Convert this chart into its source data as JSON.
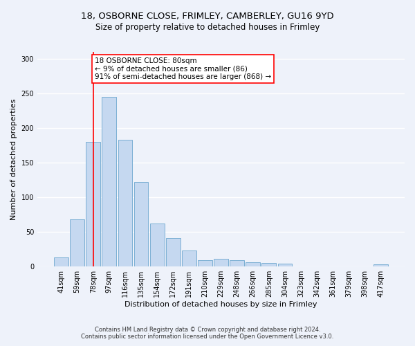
{
  "title_line1": "18, OSBORNE CLOSE, FRIMLEY, CAMBERLEY, GU16 9YD",
  "title_line2": "Size of property relative to detached houses in Frimley",
  "xlabel": "Distribution of detached houses by size in Frimley",
  "ylabel": "Number of detached properties",
  "bar_labels": [
    "41sqm",
    "59sqm",
    "78sqm",
    "97sqm",
    "116sqm",
    "135sqm",
    "154sqm",
    "172sqm",
    "191sqm",
    "210sqm",
    "229sqm",
    "248sqm",
    "266sqm",
    "285sqm",
    "304sqm",
    "323sqm",
    "342sqm",
    "361sqm",
    "379sqm",
    "398sqm",
    "417sqm"
  ],
  "bar_values": [
    13,
    68,
    180,
    245,
    183,
    122,
    62,
    41,
    23,
    9,
    11,
    9,
    6,
    5,
    4,
    0,
    0,
    0,
    0,
    0,
    3
  ],
  "bar_color": "#c5d8f0",
  "bar_edge_color": "#7bafd4",
  "vline_x_index": 2,
  "vline_color": "red",
  "annotation_text": "18 OSBORNE CLOSE: 80sqm\n← 9% of detached houses are smaller (86)\n91% of semi-detached houses are larger (868) →",
  "annotation_box_color": "white",
  "annotation_box_edge_color": "red",
  "ylim": [
    0,
    310
  ],
  "yticks": [
    0,
    50,
    100,
    150,
    200,
    250,
    300
  ],
  "footer_line1": "Contains HM Land Registry data © Crown copyright and database right 2024.",
  "footer_line2": "Contains public sector information licensed under the Open Government Licence v3.0.",
  "background_color": "#eef2fa",
  "grid_color": "white",
  "title_fontsize": 9.5,
  "subtitle_fontsize": 8.5,
  "axis_label_fontsize": 8,
  "tick_fontsize": 7,
  "annotation_fontsize": 7.5,
  "footer_fontsize": 6
}
